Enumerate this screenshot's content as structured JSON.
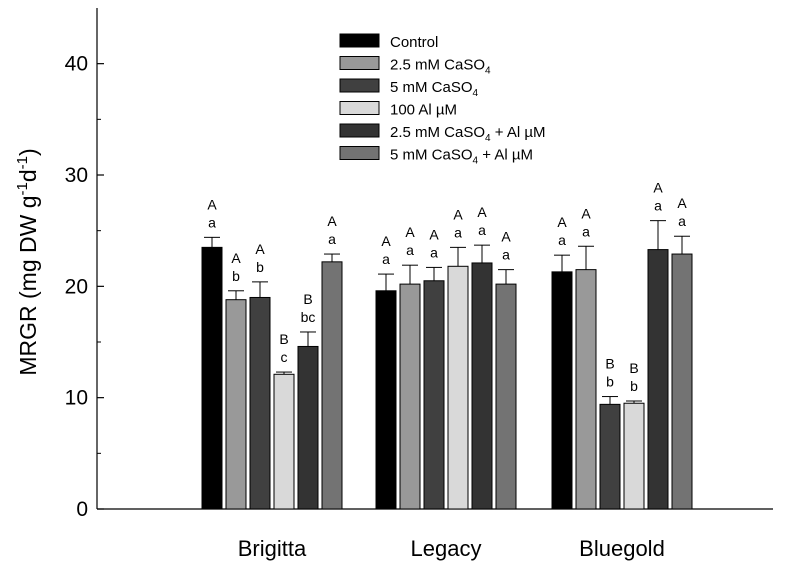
{
  "chart_data": {
    "type": "bar",
    "ylabel": "MRGR (mg DW g-1d-1)",
    "ylabel_parts": {
      "pre": "MRGR (mg DW g",
      "sup1": "-1",
      "mid": "d",
      "sup2": "-1",
      "post": ")"
    },
    "ylim": [
      0,
      45
    ],
    "yticks": [
      "0",
      "10",
      "20",
      "30",
      "40"
    ],
    "grid": false,
    "legend_position": "top-center",
    "categories": [
      "Brigitta",
      "Legacy",
      "Bluegold"
    ],
    "series": [
      {
        "name": "Control",
        "color": "#000000",
        "legend_parts": {
          "pre": "Control",
          "sub": "",
          "post": ""
        },
        "values": [
          23.5,
          19.6,
          21.3
        ],
        "errors": [
          0.9,
          1.5,
          1.5
        ],
        "sig_upper": [
          "A",
          "A",
          "A"
        ],
        "sig_lower": [
          "a",
          "a",
          "a"
        ]
      },
      {
        "name": "2.5 mM CaSO4",
        "color": "#999999",
        "legend_parts": {
          "pre": "2.5 mM CaSO",
          "sub": "4",
          "post": ""
        },
        "values": [
          18.8,
          20.2,
          21.5
        ],
        "errors": [
          0.8,
          1.7,
          2.1
        ],
        "sig_upper": [
          "A",
          "A",
          "A"
        ],
        "sig_lower": [
          "b",
          "a",
          "a"
        ]
      },
      {
        "name": "5 mM CaSO4",
        "color": "#404040",
        "legend_parts": {
          "pre": "5 mM CaSO",
          "sub": "4",
          "post": ""
        },
        "values": [
          19.0,
          20.5,
          9.4
        ],
        "errors": [
          1.4,
          1.2,
          0.7
        ],
        "sig_upper": [
          "A",
          "A",
          "B"
        ],
        "sig_lower": [
          "b",
          "a",
          "b"
        ]
      },
      {
        "name": "100 Al µM",
        "color": "#d9d9d9",
        "legend_parts": {
          "pre": "100 Al µM",
          "sub": "",
          "post": ""
        },
        "values": [
          12.1,
          21.8,
          9.5
        ],
        "errors": [
          0.2,
          1.7,
          0.2
        ],
        "sig_upper": [
          "B",
          "A",
          "B"
        ],
        "sig_lower": [
          "c",
          "a",
          "b"
        ]
      },
      {
        "name": "2.5 mM CaSO4 + Al µM",
        "color": "#333333",
        "legend_parts": {
          "pre": "2.5 mM CaSO",
          "sub": "4",
          "post": " + Al µM"
        },
        "values": [
          14.6,
          22.1,
          23.3
        ],
        "errors": [
          1.3,
          1.6,
          2.6
        ],
        "sig_upper": [
          "B",
          "A",
          "A"
        ],
        "sig_lower": [
          "bc",
          "a",
          "a"
        ]
      },
      {
        "name": "5 mM CaSO4 + Al µM",
        "color": "#737373",
        "legend_parts": {
          "pre": "5 mM CaSO",
          "sub": "4",
          "post": " + Al µM"
        },
        "values": [
          22.2,
          20.2,
          22.9
        ],
        "errors": [
          0.7,
          1.3,
          1.6
        ],
        "sig_upper": [
          "A",
          "A",
          "A"
        ],
        "sig_lower": [
          "a",
          "a",
          "a"
        ]
      }
    ]
  }
}
